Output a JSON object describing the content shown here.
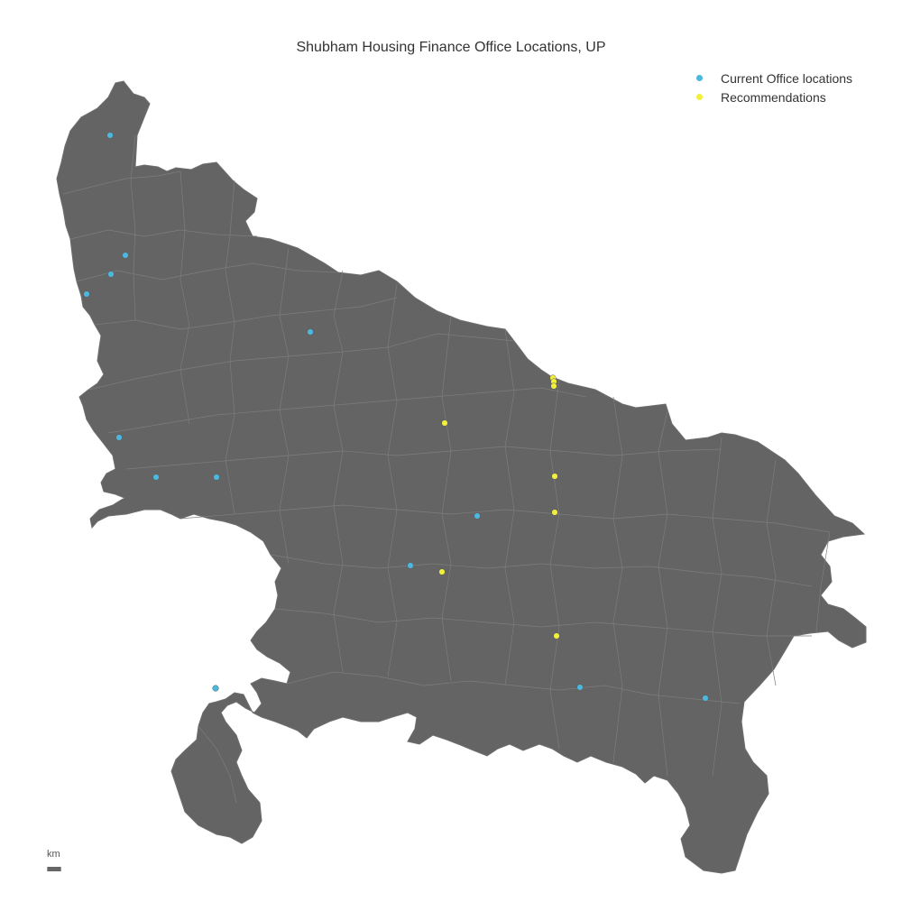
{
  "title": "Shubham Housing Finance Office Locations, UP",
  "legend": [
    {
      "label": "Current Office locations",
      "color": "#4cb8e0"
    },
    {
      "label": "Recommendations",
      "color": "#f1f03a"
    }
  ],
  "scale": {
    "unit": "km"
  },
  "colors": {
    "land": "#646464",
    "boundary": "#7d7d7d",
    "current": "#4cb8e0",
    "recommendation": "#f1f03a"
  },
  "current_offices_count": 13,
  "recommendations_count": 8
}
